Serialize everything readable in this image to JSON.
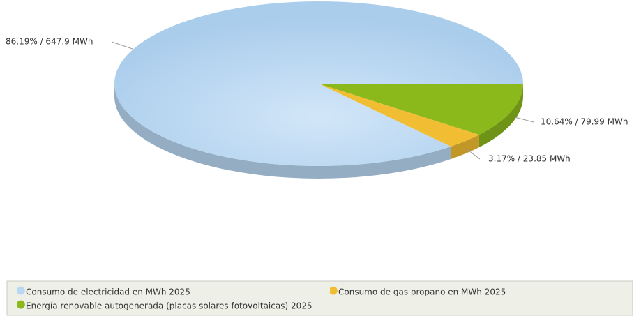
{
  "chart_data": {
    "type": "pie",
    "categories": [
      "Consumo de electricidad en MWh 2025",
      "Consumo de gas propano en MWh 2025",
      "Energía renovable autogenerada (placas solares fotovoltaicas) 2025"
    ],
    "values": [
      647.9,
      23.85,
      79.99
    ],
    "value_labels": [
      "86.19% / 647.9 MWh",
      "3.17% / 23.85 MWh",
      "10.64% / 79.99 MWh"
    ],
    "colors": [
      "#b9d8f3",
      "#f1bd32",
      "#8bb81b"
    ],
    "legend": "bottom"
  }
}
